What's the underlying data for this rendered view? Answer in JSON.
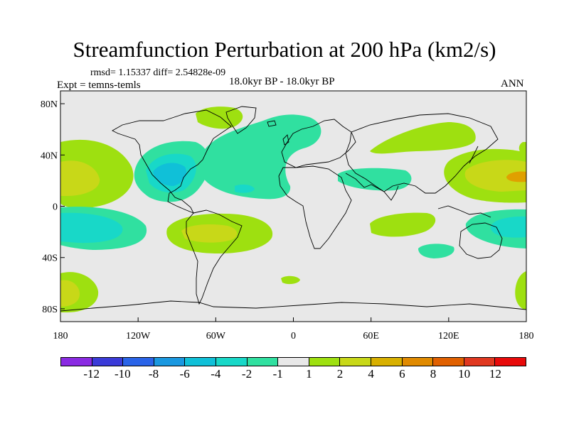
{
  "figure": {
    "title": "Streamfunction Perturbation at 200 hPa (km2/s)",
    "stats": "rmsd= 1.15337 diff= 2.54828e-09",
    "experiment": "Expt = temns-temls",
    "period": "18.0kyr BP - 18.0kyr BP",
    "season": "ANN"
  },
  "axes": {
    "x_ticks": [
      {
        "label": "180",
        "lon": -180
      },
      {
        "label": "120W",
        "lon": -120
      },
      {
        "label": "60W",
        "lon": -60
      },
      {
        "label": "0",
        "lon": 0
      },
      {
        "label": "60E",
        "lon": 60
      },
      {
        "label": "120E",
        "lon": 120
      },
      {
        "label": "180",
        "lon": 180
      }
    ],
    "y_ticks": [
      {
        "label": "80N",
        "lat": 80
      },
      {
        "label": "40N",
        "lat": 40
      },
      {
        "label": "0",
        "lat": 0
      },
      {
        "label": "40S",
        "lat": -40
      },
      {
        "label": "80S",
        "lat": -80
      }
    ],
    "lon_range": [
      -180,
      180
    ],
    "lat_range": [
      -90,
      90
    ]
  },
  "colorbar": {
    "colors": [
      "#8a2be2",
      "#3b3bd8",
      "#2a64e8",
      "#1a98e0",
      "#10c0d8",
      "#18d8c8",
      "#30e0a0",
      "#e8e8e8",
      "#9ee010",
      "#c8d818",
      "#d8b000",
      "#e08a00",
      "#e06000",
      "#e03820",
      "#e80a0a"
    ],
    "labels": [
      "-12",
      "-10",
      "-8",
      "-6",
      "-4",
      "-2",
      "-1",
      "1",
      "2",
      "4",
      "6",
      "8",
      "10",
      "12"
    ]
  },
  "colors": {
    "neutral": "#e8e8e8",
    "pos1": "#9ee010",
    "pos2": "#c8d818",
    "neg1": "#30e0a0",
    "neg2": "#18d8c8",
    "neg3": "#10c0d8",
    "coast": "#000000"
  }
}
